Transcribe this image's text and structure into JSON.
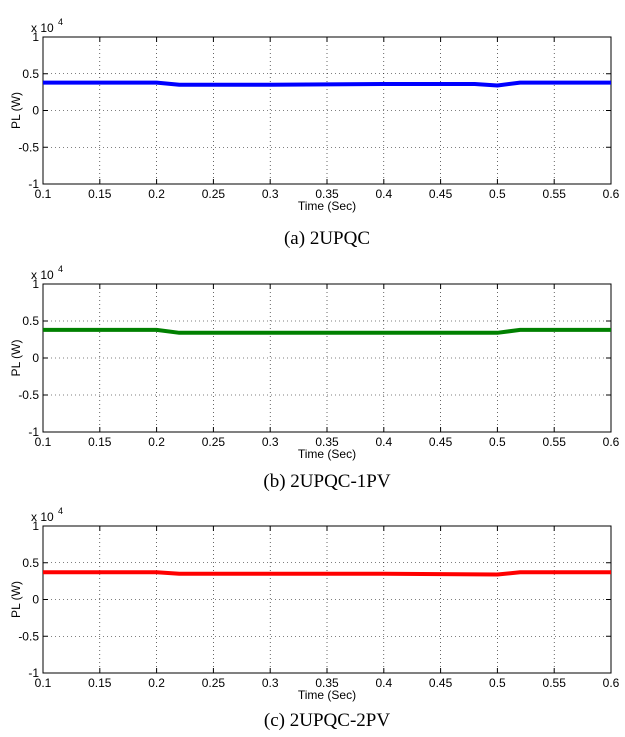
{
  "chart_data": [
    {
      "type": "line",
      "caption": "(a) 2UPQC",
      "xlabel": "Time (Sec)",
      "ylabel": "PL (W)",
      "y_multiplier": {
        "base": "x 10",
        "exp": "4"
      },
      "xlim": [
        0.1,
        0.6
      ],
      "ylim": [
        -1,
        1
      ],
      "x_ticks": [
        "0.1",
        "0.15",
        "0.2",
        "0.25",
        "0.3",
        "0.35",
        "0.4",
        "0.45",
        "0.5",
        "0.55",
        "0.6"
      ],
      "y_ticks": [
        "-1",
        "-0.5",
        "0",
        "0.5",
        "1"
      ],
      "grid": true,
      "color": "#0000ff",
      "x": [
        0.1,
        0.2,
        0.22,
        0.3,
        0.4,
        0.48,
        0.5,
        0.52,
        0.6
      ],
      "y": [
        0.38,
        0.38,
        0.35,
        0.35,
        0.36,
        0.36,
        0.34,
        0.38,
        0.38
      ]
    },
    {
      "type": "line",
      "caption": "(b) 2UPQC-1PV",
      "xlabel": "Time (Sec)",
      "ylabel": "PL (W)",
      "y_multiplier": {
        "base": "x 10",
        "exp": "4"
      },
      "xlim": [
        0.1,
        0.6
      ],
      "ylim": [
        -1,
        1
      ],
      "x_ticks": [
        "0.1",
        "0.15",
        "0.2",
        "0.25",
        "0.3",
        "0.35",
        "0.4",
        "0.45",
        "0.5",
        "0.55",
        "0.6"
      ],
      "y_ticks": [
        "-1",
        "-0.5",
        "0",
        "0.5",
        "1"
      ],
      "grid": true,
      "color": "#008000",
      "x": [
        0.1,
        0.2,
        0.22,
        0.3,
        0.4,
        0.5,
        0.52,
        0.6
      ],
      "y": [
        0.38,
        0.38,
        0.34,
        0.34,
        0.34,
        0.34,
        0.38,
        0.38
      ]
    },
    {
      "type": "line",
      "caption": "(c) 2UPQC-2PV",
      "xlabel": "Time (Sec)",
      "ylabel": "PL (W)",
      "y_multiplier": {
        "base": "x 10",
        "exp": "4"
      },
      "xlim": [
        0.1,
        0.6
      ],
      "ylim": [
        -1,
        1
      ],
      "x_ticks": [
        "0.1",
        "0.15",
        "0.2",
        "0.25",
        "0.3",
        "0.35",
        "0.4",
        "0.45",
        "0.5",
        "0.55",
        "0.6"
      ],
      "y_ticks": [
        "-1",
        "-0.5",
        "0",
        "0.5",
        "1"
      ],
      "grid": true,
      "color": "#ff0000",
      "x": [
        0.1,
        0.2,
        0.22,
        0.3,
        0.4,
        0.5,
        0.52,
        0.6
      ],
      "y": [
        0.37,
        0.37,
        0.35,
        0.35,
        0.35,
        0.34,
        0.37,
        0.37
      ]
    }
  ]
}
